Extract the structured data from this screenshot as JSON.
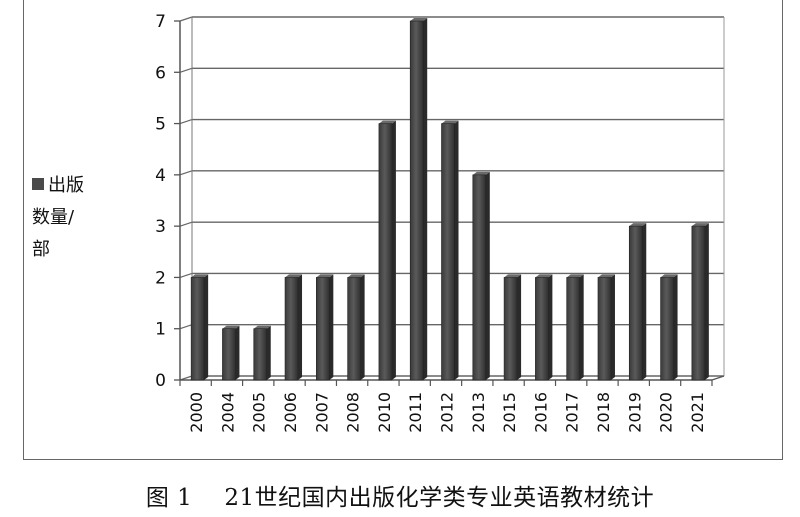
{
  "chart_data": {
    "type": "bar",
    "categories": [
      "2000",
      "2004",
      "2005",
      "2006",
      "2007",
      "2008",
      "2010",
      "2011",
      "2012",
      "2013",
      "2015",
      "2016",
      "2017",
      "2018",
      "2019",
      "2020",
      "2021"
    ],
    "values": [
      2,
      1,
      1,
      2,
      2,
      2,
      5,
      7,
      5,
      4,
      2,
      2,
      2,
      2,
      3,
      2,
      3
    ],
    "yticks": [
      "0",
      "1",
      "2",
      "3",
      "4",
      "5",
      "6",
      "7"
    ],
    "ylim": [
      0,
      7
    ],
    "grid": true,
    "legend": {
      "placement": "left",
      "label": "出版数量/部",
      "lines": [
        "出版",
        "数量/",
        "部"
      ]
    },
    "bar_color": "#4a4a4a"
  },
  "caption": {
    "prefix": "图 1",
    "text": "21世纪国内出版化学类专业英语教材统计"
  }
}
